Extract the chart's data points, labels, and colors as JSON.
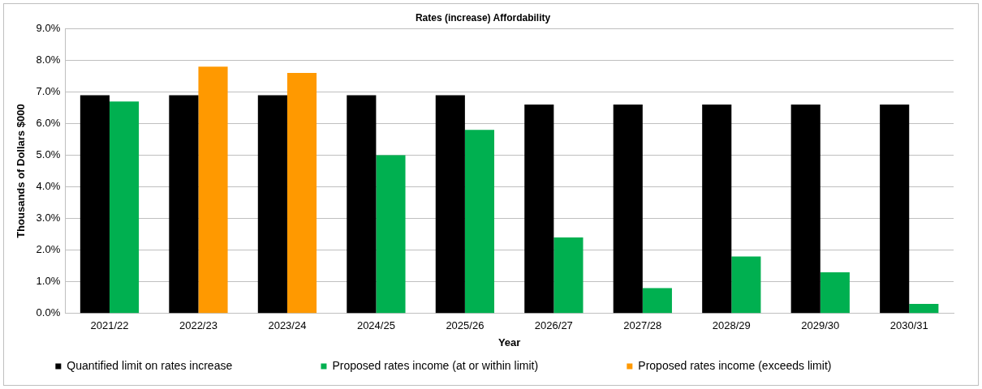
{
  "chart_data": {
    "type": "bar",
    "title": "Rates (increase) Affordability",
    "xlabel": "Year",
    "ylabel": "Thousands of Dollars $000",
    "categories": [
      "2021/22",
      "2022/23",
      "2023/24",
      "2024/25",
      "2025/26",
      "2026/27",
      "2027/28",
      "2028/29",
      "2029/30",
      "2030/31"
    ],
    "series": [
      {
        "name": "Quantified limit on rates increase",
        "color": "#000000",
        "values": [
          6.9,
          6.9,
          6.9,
          6.9,
          6.9,
          6.6,
          6.6,
          6.6,
          6.6,
          6.6
        ]
      },
      {
        "name": "Proposed rates income (at or within limit)",
        "color": "#00b050",
        "values": [
          6.7,
          null,
          null,
          5.0,
          5.8,
          2.4,
          0.8,
          1.8,
          1.3,
          0.3
        ]
      },
      {
        "name": "Proposed rates income (exceeds limit)",
        "color": "#ff9900",
        "values": [
          null,
          7.8,
          7.6,
          null,
          null,
          null,
          null,
          null,
          null,
          null
        ]
      }
    ],
    "ylim": [
      0,
      9
    ],
    "yticks": [
      {
        "value": 0,
        "label": "0.0%"
      },
      {
        "value": 1,
        "label": "1.0%"
      },
      {
        "value": 2,
        "label": "2.0%"
      },
      {
        "value": 3,
        "label": "3.0%"
      },
      {
        "value": 4,
        "label": "4.0%"
      },
      {
        "value": 5,
        "label": "5.0%"
      },
      {
        "value": 6,
        "label": "6.0%"
      },
      {
        "value": 7,
        "label": "7.0%"
      },
      {
        "value": 8,
        "label": "8.0%"
      },
      {
        "value": 9,
        "label": "9.0%"
      }
    ],
    "grid": "y",
    "legend": "bottom"
  }
}
